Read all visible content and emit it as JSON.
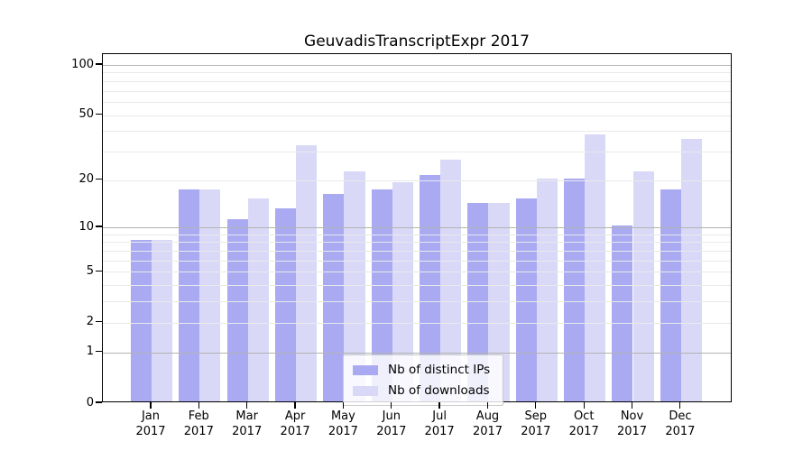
{
  "title": "GeuvadisTranscriptExpr 2017",
  "colors": {
    "ips_bar": "#aaaaf2",
    "downloads_bar": "#d9d9f7",
    "grid_decade": "#b3b3b3",
    "grid_minor": "#e9e9ec",
    "axis": "#000000"
  },
  "legend": {
    "items": [
      {
        "label": "Nb of distinct IPs",
        "color_key": "ips_bar"
      },
      {
        "label": "Nb of downloads",
        "color_key": "downloads_bar"
      }
    ]
  },
  "chart_data": {
    "type": "bar",
    "title": "GeuvadisTranscriptExpr 2017",
    "categories": [
      "Jan 2017",
      "Feb 2017",
      "Mar 2017",
      "Apr 2017",
      "May 2017",
      "Jun 2017",
      "Jul 2017",
      "Aug 2017",
      "Sep 2017",
      "Oct 2017",
      "Nov 2017",
      "Dec 2017"
    ],
    "month_names": [
      "Jan",
      "Feb",
      "Mar",
      "Apr",
      "May",
      "Jun",
      "Jul",
      "Aug",
      "Sep",
      "Oct",
      "Nov",
      "Dec"
    ],
    "year": "2017",
    "series": [
      {
        "name": "Nb of distinct IPs",
        "values": [
          8,
          17,
          11,
          13,
          16,
          17,
          21,
          14,
          15,
          20,
          10,
          17
        ]
      },
      {
        "name": "Nb of downloads",
        "values": [
          8,
          17,
          15,
          32,
          22,
          19,
          26,
          14,
          20,
          37,
          22,
          35
        ]
      }
    ],
    "xlabel": "",
    "ylabel": "",
    "yscale": "log1p",
    "yticks": [
      0,
      1,
      2,
      5,
      10,
      20,
      50,
      100
    ],
    "gridline_values": [
      1,
      2,
      3,
      4,
      5,
      6,
      7,
      8,
      9,
      10,
      20,
      30,
      40,
      50,
      60,
      70,
      80,
      90,
      100
    ],
    "ylim": [
      0,
      116
    ],
    "grid": true,
    "legend_position": "inside-bottom-center"
  }
}
